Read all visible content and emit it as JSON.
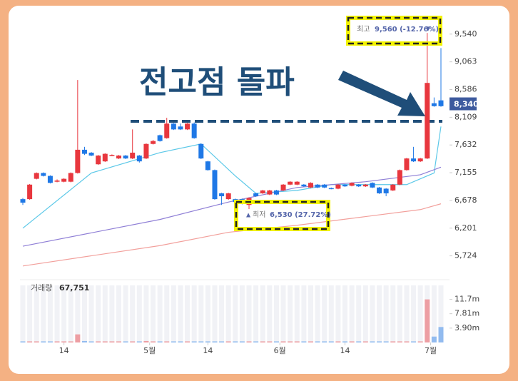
{
  "chart_data": {
    "type": "candlestick",
    "headline": "전고점 돌파",
    "volume_title": "거래량",
    "volume_total": "67,751",
    "high_note": {
      "label": "최고",
      "text": "9,560 (-12.76%)",
      "marker": "▼"
    },
    "low_note": {
      "marker": "▲",
      "label": "최저",
      "text": "6,530 (27.72%)"
    },
    "current_price": {
      "value": 8340,
      "label": "8,340"
    },
    "up_color": "#e8373e",
    "down_color": "#1f78e6",
    "open": [
      6700,
      6700,
      7050,
      7150,
      7100,
      7000,
      7000,
      7000,
      7150,
      7550,
      7500,
      7300,
      7350,
      7450,
      7400,
      7450,
      7400,
      7450,
      7400,
      7650,
      7800,
      7750,
      8000,
      7950,
      7900,
      8000,
      7650,
      7350,
      7200,
      6800,
      6700,
      6700,
      6700,
      6600,
      6800,
      6800,
      6780,
      6850,
      6850,
      6950,
      6950,
      6950,
      6900,
      6950,
      6950,
      6890,
      6880,
      6950,
      6930,
      6950,
      6920,
      6980,
      6900,
      6880,
      6850,
      6950,
      7200,
      7400,
      7350,
      7400,
      8350,
      8400
    ],
    "high": [
      6720,
      6960,
      7160,
      7160,
      7110,
      7040,
      7060,
      7160,
      8750,
      7600,
      7510,
      7460,
      7490,
      7470,
      7460,
      7460,
      7900,
      7460,
      7660,
      7720,
      7810,
      8100,
      8010,
      8000,
      8010,
      8020,
      7660,
      7360,
      7210,
      6810,
      6810,
      6710,
      6710,
      6730,
      6810,
      6860,
      6860,
      6860,
      6960,
      7010,
      7010,
      6960,
      6990,
      6960,
      6960,
      6900,
      6960,
      6960,
      6990,
      6960,
      6960,
      6990,
      6910,
      6890,
      6960,
      7210,
      7410,
      7600,
      7410,
      9560,
      8450,
      9300
    ],
    "low": [
      6600,
      6690,
      7040,
      7090,
      6970,
      6990,
      6990,
      6990,
      7140,
      7460,
      7440,
      7290,
      7340,
      7440,
      7390,
      7390,
      7390,
      7330,
      7390,
      7640,
      7690,
      7740,
      7890,
      7890,
      7890,
      7740,
      7390,
      7190,
      6690,
      6600,
      6690,
      6640,
      6610,
      6530,
      6740,
      6790,
      6770,
      6770,
      6840,
      6940,
      6940,
      6910,
      6890,
      6890,
      6890,
      6870,
      6870,
      6910,
      6920,
      6910,
      6910,
      6890,
      6790,
      6750,
      6840,
      6940,
      7190,
      7340,
      7340,
      7390,
      8290,
      8290
    ],
    "close": [
      6640,
      6950,
      7150,
      7100,
      6980,
      7020,
      7050,
      7150,
      7550,
      7480,
      7450,
      7450,
      7480,
      7460,
      7450,
      7400,
      7500,
      7350,
      7650,
      7700,
      7700,
      8000,
      7900,
      7900,
      8000,
      7750,
      7400,
      7200,
      6700,
      6750,
      6800,
      6650,
      6620,
      6720,
      6750,
      6850,
      6850,
      6780,
      6950,
      7000,
      7000,
      6920,
      6980,
      6900,
      6900,
      6880,
      6950,
      6920,
      6980,
      6920,
      6950,
      6900,
      6800,
      6800,
      6950,
      7200,
      7400,
      7350,
      7400,
      8700,
      8300,
      8300
    ],
    "volume": [
      0.3,
      0.3,
      0.3,
      0.3,
      0.3,
      0.3,
      0.3,
      0.3,
      2.2,
      0.4,
      0.3,
      0.3,
      0.3,
      0.3,
      0.3,
      0.3,
      0.3,
      0.3,
      0.4,
      0.3,
      0.3,
      0.3,
      0.3,
      0.3,
      0.3,
      0.3,
      0.3,
      0.3,
      0.3,
      0.3,
      0.3,
      0.3,
      0.3,
      0.3,
      0.3,
      0.3,
      0.3,
      0.3,
      0.3,
      0.3,
      0.3,
      0.3,
      0.3,
      0.3,
      0.3,
      0.3,
      0.3,
      0.3,
      0.3,
      0.3,
      0.3,
      0.3,
      0.3,
      0.3,
      0.3,
      0.3,
      0.3,
      0.3,
      0.3,
      11.7,
      1.6,
      4.2
    ],
    "moving_averages": [
      {
        "color": "#5bc8e8",
        "x": [
          0,
          10,
          20,
          26,
          31,
          34,
          40,
          45,
          50,
          56,
          60,
          61
        ],
        "values": [
          6200,
          7150,
          7500,
          7650,
          7100,
          6800,
          6850,
          6950,
          6950,
          6950,
          7150,
          7950
        ]
      },
      {
        "color": "#8f7fd6",
        "x": [
          0,
          20,
          30,
          40,
          50,
          58,
          61
        ],
        "values": [
          5890,
          6350,
          6650,
          6900,
          7000,
          7120,
          7250
        ]
      },
      {
        "color": "#f2a09c",
        "x": [
          0,
          20,
          30,
          40,
          50,
          58,
          61
        ],
        "values": [
          5550,
          5900,
          6130,
          6250,
          6400,
          6520,
          6620
        ]
      }
    ],
    "ylim": [
      5400,
      9820
    ],
    "yticks": [
      {
        "value": 9540,
        "label": "9,540"
      },
      {
        "value": 9063,
        "label": "9,063"
      },
      {
        "value": 8586,
        "label": "8,586"
      },
      {
        "value": 8109,
        "label": "8,109"
      },
      {
        "value": 7632,
        "label": "7,632"
      },
      {
        "value": 7155,
        "label": "7,155"
      },
      {
        "value": 6678,
        "label": "6,678"
      },
      {
        "value": 6201,
        "label": "6,201"
      },
      {
        "value": 5724,
        "label": "5,724"
      }
    ],
    "volume_lim": [
      0,
      15.5
    ],
    "volume_ticks": [
      {
        "value": 11.7,
        "label": "11.7m"
      },
      {
        "value": 7.81,
        "label": "7.81m"
      },
      {
        "value": 3.9,
        "label": "3.90m"
      }
    ],
    "xticks": [
      {
        "value": 6,
        "label": "14"
      },
      {
        "value": 18.5,
        "label": "5월"
      },
      {
        "value": 27,
        "label": "14"
      },
      {
        "value": 37.5,
        "label": "6월"
      },
      {
        "value": 47,
        "label": "14"
      },
      {
        "value": 59.5,
        "label": "7월"
      }
    ]
  }
}
